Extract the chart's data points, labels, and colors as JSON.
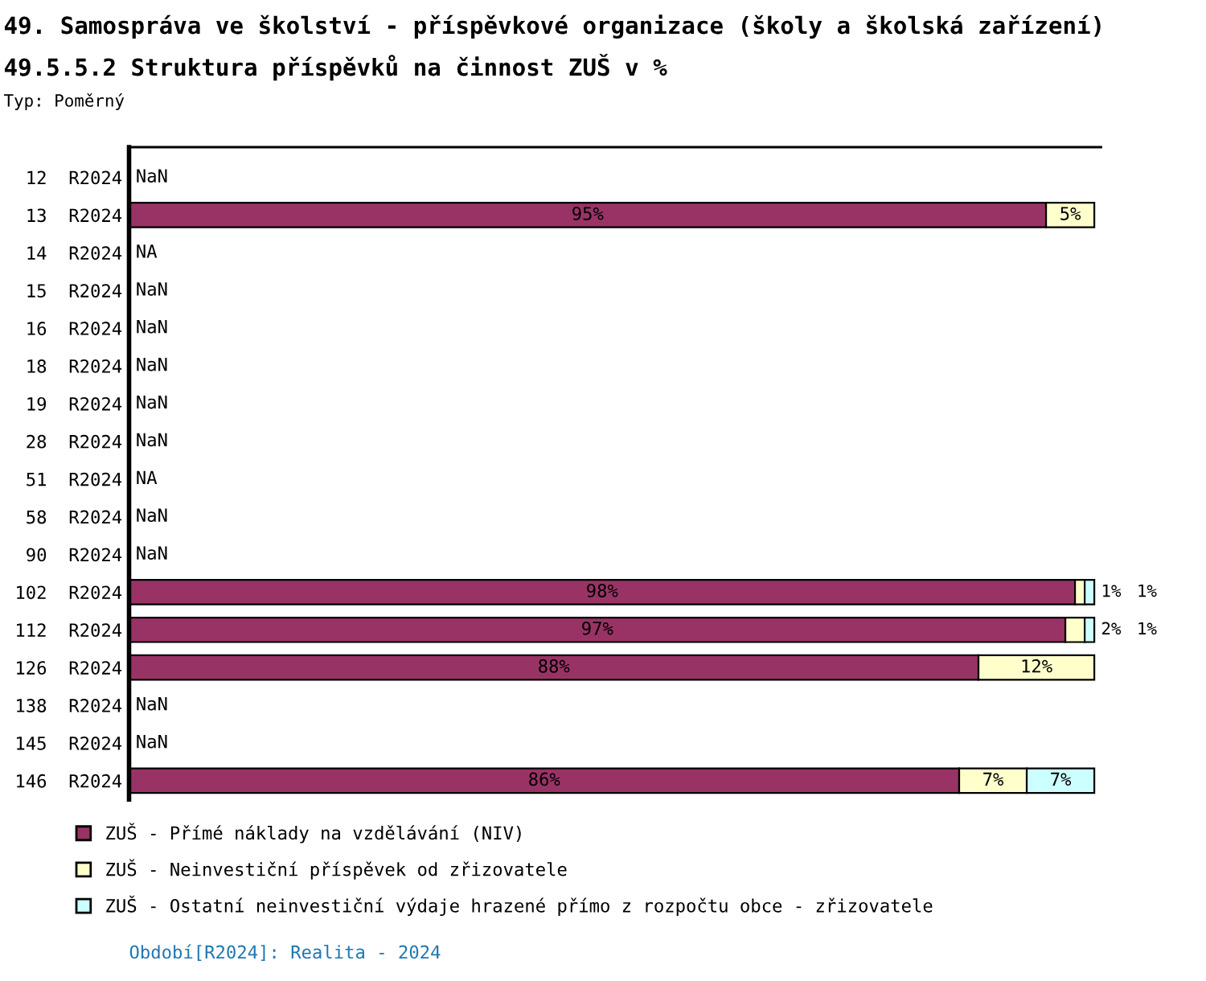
{
  "chart_data": {
    "type": "bar",
    "orientation": "horizontal",
    "stacked": true,
    "title": "49. Samospráva ve školství - příspěvkové organizace (školy a školská zařízení)",
    "subtitle": "49.5.5.2 Struktura příspěvků na činnost ZUŠ v %",
    "categories": [
      "12  R2024",
      "13  R2024",
      "14  R2024",
      "15  R2024",
      "16  R2024",
      "18  R2024",
      "19  R2024",
      "28  R2024",
      "51  R2024",
      "58  R2024",
      "90  R2024",
      "102  R2024",
      "112  R2024",
      "126  R2024",
      "138  R2024",
      "145  R2024",
      "146  R2024"
    ],
    "series": [
      {
        "name": "ZUŠ - Přímé náklady na vzdělávání (NIV)",
        "color": "#993366",
        "values": [
          null,
          95,
          null,
          null,
          null,
          null,
          null,
          null,
          null,
          null,
          null,
          98,
          97,
          88,
          null,
          null,
          86
        ],
        "value_labels": [
          null,
          "95%",
          null,
          null,
          null,
          null,
          null,
          null,
          null,
          null,
          null,
          "98%",
          "97%",
          "88%",
          null,
          null,
          "86%"
        ]
      },
      {
        "name": "ZUŠ - Neinvestiční příspěvek od zřizovatele",
        "color": "#ffffcc",
        "values": [
          null,
          5,
          null,
          null,
          null,
          null,
          null,
          null,
          null,
          null,
          null,
          1,
          2,
          12,
          null,
          null,
          7
        ],
        "value_labels": [
          null,
          "5%",
          null,
          null,
          null,
          null,
          null,
          null,
          null,
          null,
          null,
          "1%",
          "2%",
          "12%",
          null,
          null,
          "7%"
        ]
      },
      {
        "name": "ZUŠ - Ostatní neinvestiční výdaje hrazené přímo z rozpočtu obce - zřizovatele",
        "color": "#ccffff",
        "values": [
          null,
          null,
          null,
          null,
          null,
          null,
          null,
          null,
          null,
          null,
          null,
          1,
          1,
          null,
          null,
          null,
          7
        ],
        "value_labels": [
          null,
          null,
          null,
          null,
          null,
          null,
          null,
          null,
          null,
          null,
          null,
          "1%",
          "1%",
          null,
          null,
          null,
          "7%"
        ]
      }
    ],
    "annotations": [
      "Typ: Poměrný",
      "Období[R2024]: Realita - 2024",
      "NaN",
      "NA",
      "NaN",
      "NaN",
      "NaN",
      "NaN",
      "NaN",
      "NA",
      "NaN",
      "NaN",
      "NaN",
      "NaN"
    ],
    "legend": "bottom",
    "grid": false
  }
}
